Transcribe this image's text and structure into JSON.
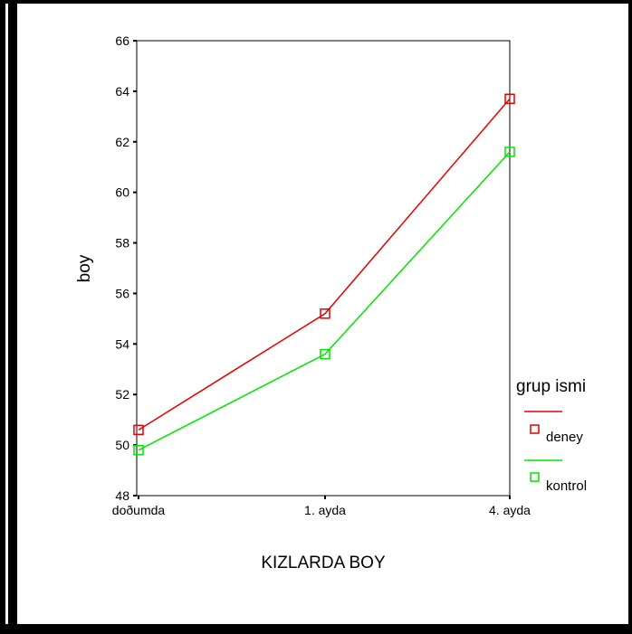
{
  "chart_data": {
    "type": "line",
    "xlabel": "KIZLARDA BOY",
    "ylabel": "boy",
    "categories": [
      "doðumda",
      "1. ayda",
      "4. ayda"
    ],
    "ylim": [
      48,
      66
    ],
    "yticks": [
      48,
      50,
      52,
      54,
      56,
      58,
      60,
      62,
      64,
      66
    ],
    "ytick_labels": [
      "48",
      "50",
      "52",
      "54",
      "56",
      "58",
      "60",
      "62",
      "64",
      "66"
    ],
    "series": [
      {
        "name": "deney",
        "color": "#e60000",
        "marker": "square-open",
        "values": [
          50.6,
          55.2,
          63.7
        ]
      },
      {
        "name": "kontrol",
        "color": "#00e600",
        "marker": "square-open",
        "values": [
          49.8,
          53.6,
          61.6
        ]
      }
    ],
    "legend": {
      "title": "grup ismi",
      "placement": "right"
    },
    "grid": false
  }
}
